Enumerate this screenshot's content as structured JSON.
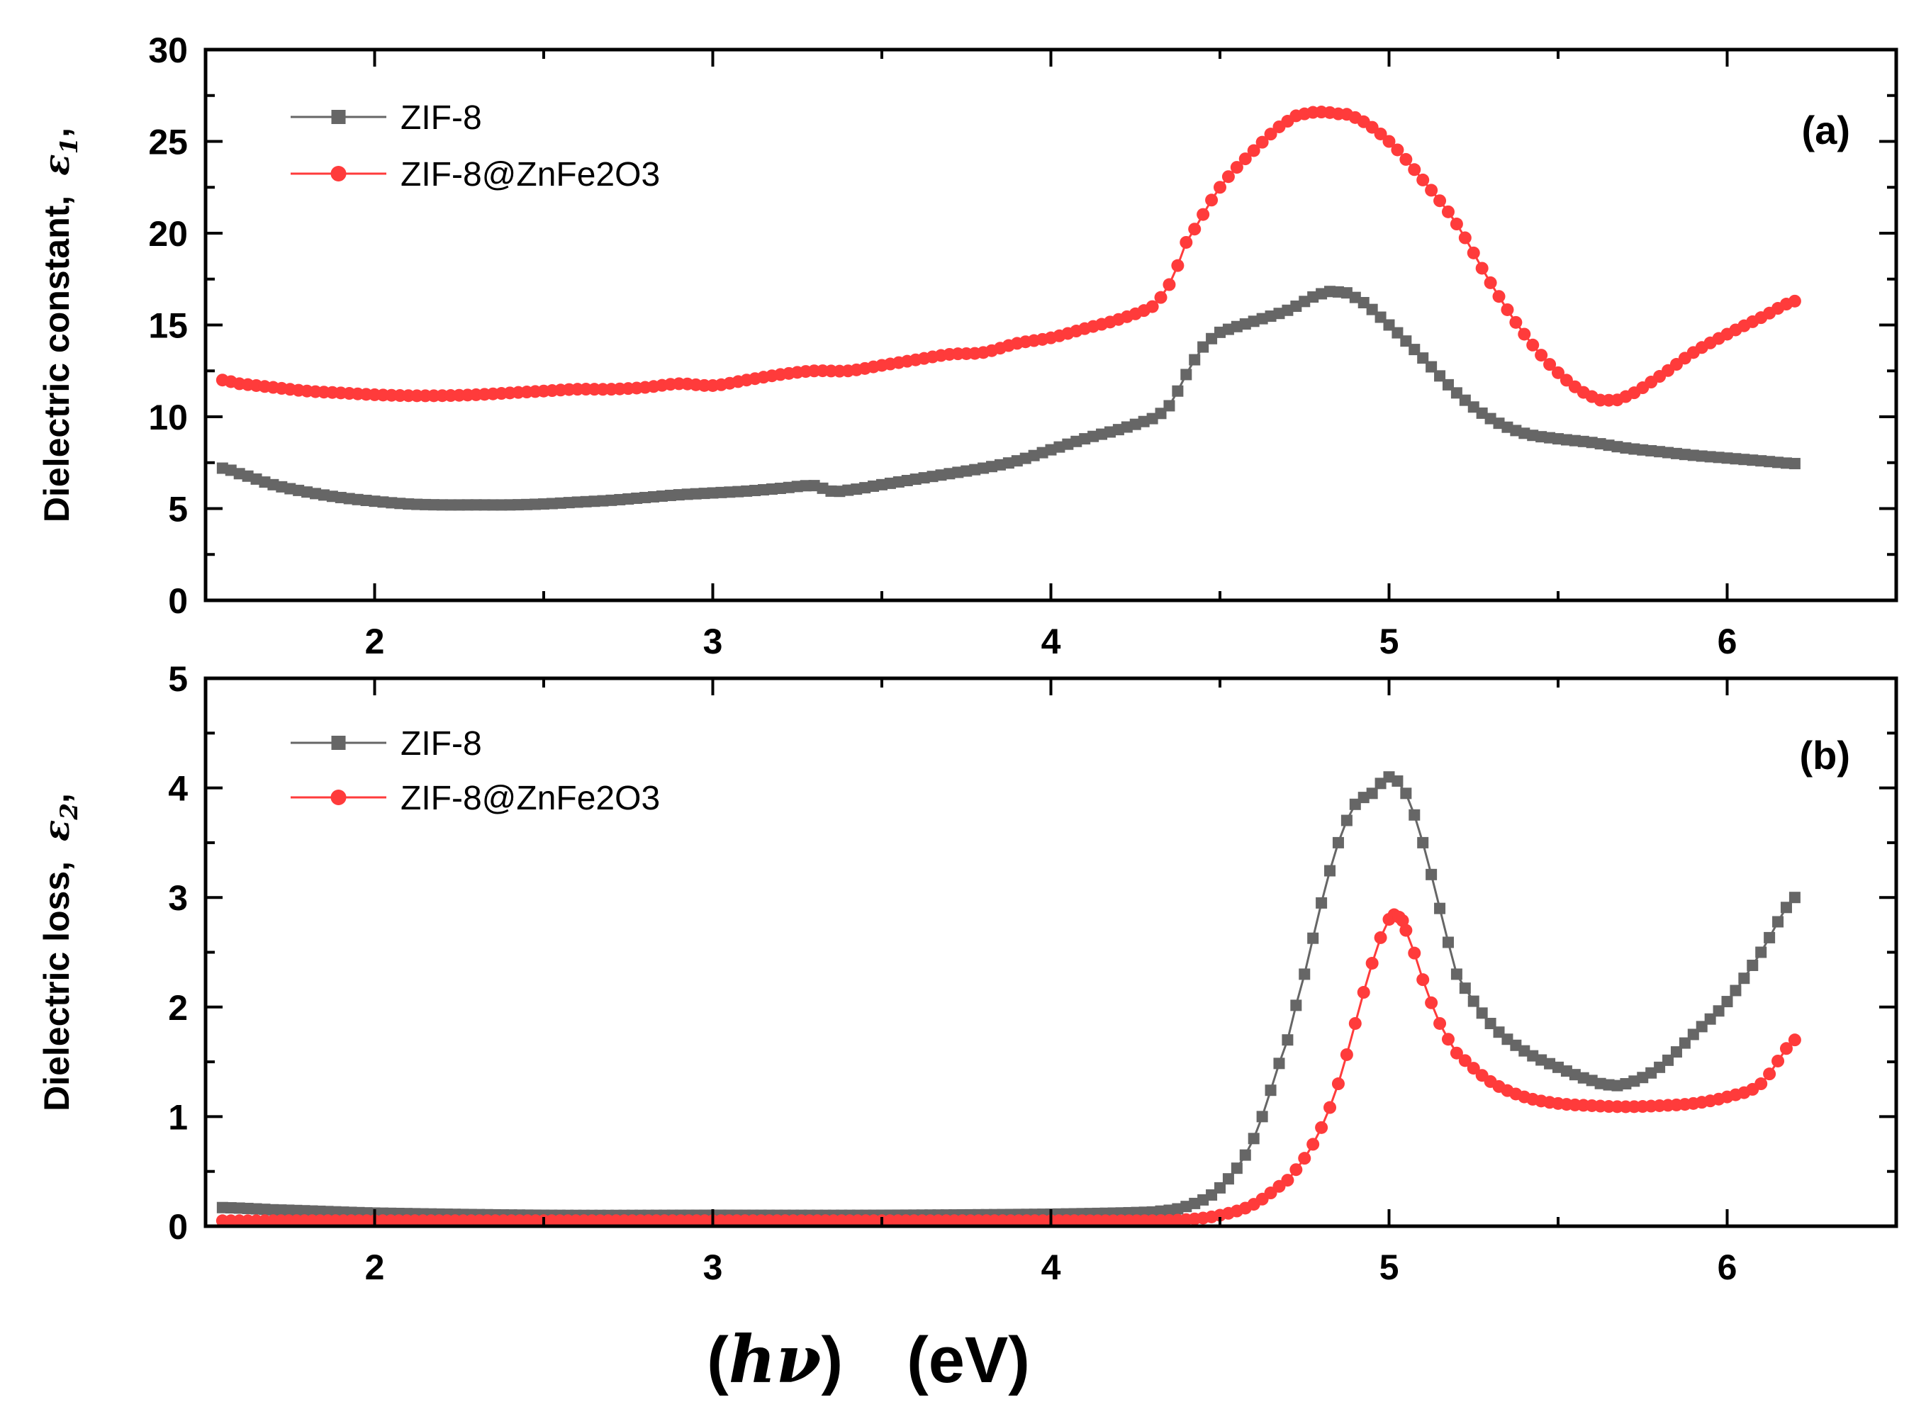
{
  "chart_data": [
    {
      "panel": "a",
      "type": "line",
      "panel_label": "(a)",
      "ylabel": "Dielectric constant,",
      "ylabel_symbol": "ε",
      "ylabel_sub": "1",
      "ylabel_suffix": ",",
      "xlim": [
        1.5,
        6.5
      ],
      "ylim": [
        0,
        30
      ],
      "xticks": [
        2,
        3,
        4,
        5,
        6
      ],
      "xtick_labels": [
        "2",
        "3",
        "4",
        "5",
        "6"
      ],
      "yticks": [
        0,
        5,
        10,
        15,
        20,
        25,
        30
      ],
      "ytick_labels": [
        "0",
        "5",
        "10",
        "15",
        "20",
        "25",
        "30"
      ],
      "legend_position": "top-left",
      "series": [
        {
          "name": "ZIF-8",
          "color": "#666666",
          "marker": "square",
          "x": [
            1.55,
            1.6,
            1.7,
            1.8,
            1.9,
            2.0,
            2.1,
            2.2,
            2.3,
            2.4,
            2.5,
            2.6,
            2.7,
            2.8,
            2.9,
            3.0,
            3.1,
            3.2,
            3.3,
            3.35,
            3.4,
            3.5,
            3.6,
            3.7,
            3.8,
            3.9,
            4.0,
            4.1,
            4.2,
            4.3,
            4.35,
            4.4,
            4.45,
            4.5,
            4.6,
            4.7,
            4.8,
            4.85,
            4.9,
            5.0,
            5.1,
            5.2,
            5.3,
            5.4,
            5.5,
            5.6,
            5.7,
            5.8,
            5.9,
            6.0,
            6.1,
            6.2
          ],
          "y": [
            7.2,
            6.9,
            6.3,
            5.9,
            5.6,
            5.4,
            5.25,
            5.2,
            5.2,
            5.2,
            5.25,
            5.35,
            5.45,
            5.6,
            5.75,
            5.85,
            5.95,
            6.1,
            6.25,
            5.95,
            6.0,
            6.3,
            6.6,
            6.9,
            7.2,
            7.6,
            8.2,
            8.8,
            9.3,
            9.9,
            10.6,
            12.3,
            13.8,
            14.6,
            15.2,
            15.8,
            16.7,
            16.8,
            16.5,
            15.0,
            13.2,
            11.3,
            9.9,
            9.1,
            8.8,
            8.6,
            8.3,
            8.1,
            7.9,
            7.75,
            7.6,
            7.45
          ]
        },
        {
          "name": "ZIF-8@ZnFe2O3",
          "color": "#ff3b3b",
          "marker": "circle",
          "x": [
            1.55,
            1.6,
            1.7,
            1.8,
            1.9,
            2.0,
            2.1,
            2.2,
            2.3,
            2.4,
            2.5,
            2.6,
            2.7,
            2.8,
            2.9,
            3.0,
            3.1,
            3.2,
            3.3,
            3.4,
            3.5,
            3.6,
            3.7,
            3.8,
            3.9,
            4.0,
            4.1,
            4.2,
            4.3,
            4.35,
            4.4,
            4.5,
            4.6,
            4.7,
            4.75,
            4.8,
            4.85,
            4.9,
            5.0,
            5.1,
            5.2,
            5.3,
            5.4,
            5.5,
            5.6,
            5.65,
            5.7,
            5.8,
            5.9,
            6.0,
            6.1,
            6.2
          ],
          "y": [
            12.0,
            11.8,
            11.6,
            11.4,
            11.3,
            11.2,
            11.15,
            11.15,
            11.2,
            11.3,
            11.4,
            11.5,
            11.5,
            11.6,
            11.8,
            11.7,
            12.0,
            12.3,
            12.5,
            12.5,
            12.8,
            13.1,
            13.4,
            13.5,
            14.0,
            14.3,
            14.8,
            15.3,
            16.0,
            17.2,
            19.5,
            22.5,
            24.5,
            26.1,
            26.5,
            26.6,
            26.5,
            26.3,
            25.0,
            22.9,
            20.5,
            17.3,
            14.5,
            12.4,
            11.1,
            10.9,
            11.1,
            12.2,
            13.5,
            14.5,
            15.4,
            16.3
          ]
        }
      ]
    },
    {
      "panel": "b",
      "type": "line",
      "panel_label": "(b)",
      "ylabel": "Dielectric loss,",
      "ylabel_symbol": "ε",
      "ylabel_sub": "2",
      "ylabel_suffix": ",",
      "xlabel": "(hν)    (eV)",
      "xlabel_paren_open": "(",
      "xlabel_h": "h",
      "xlabel_nu": "ν",
      "xlabel_paren_close": ")",
      "xlabel_unit": "(eV)",
      "xlim": [
        1.5,
        6.5
      ],
      "ylim": [
        0,
        5
      ],
      "xticks": [
        2,
        3,
        4,
        5,
        6
      ],
      "xtick_labels": [
        "2",
        "3",
        "4",
        "5",
        "6"
      ],
      "yticks": [
        0,
        1,
        2,
        3,
        4,
        5
      ],
      "ytick_labels": [
        "0",
        "1",
        "2",
        "3",
        "4",
        "5"
      ],
      "legend_position": "top-left",
      "series": [
        {
          "name": "ZIF-8",
          "color": "#666666",
          "marker": "square",
          "x": [
            1.55,
            1.7,
            2.0,
            2.5,
            3.0,
            3.5,
            4.0,
            4.3,
            4.4,
            4.5,
            4.6,
            4.7,
            4.75,
            4.8,
            4.85,
            4.9,
            4.95,
            5.0,
            5.05,
            5.1,
            5.15,
            5.2,
            5.3,
            5.4,
            5.5,
            5.6,
            5.65,
            5.7,
            5.8,
            5.9,
            6.0,
            6.1,
            6.2
          ],
          "y": [
            0.17,
            0.15,
            0.12,
            0.1,
            0.1,
            0.1,
            0.11,
            0.13,
            0.18,
            0.35,
            0.8,
            1.7,
            2.3,
            2.95,
            3.5,
            3.85,
            3.95,
            4.1,
            3.95,
            3.5,
            2.9,
            2.3,
            1.85,
            1.6,
            1.45,
            1.33,
            1.29,
            1.3,
            1.45,
            1.75,
            2.05,
            2.5,
            3.0
          ]
        },
        {
          "name": "ZIF-8@ZnFe2O3",
          "color": "#ff3b3b",
          "marker": "circle",
          "x": [
            1.55,
            1.7,
            2.0,
            2.5,
            3.0,
            3.5,
            4.0,
            4.3,
            4.4,
            4.5,
            4.6,
            4.7,
            4.75,
            4.8,
            4.85,
            4.9,
            4.95,
            5.0,
            5.03,
            5.05,
            5.1,
            5.15,
            5.2,
            5.3,
            5.4,
            5.5,
            5.6,
            5.7,
            5.8,
            5.9,
            6.0,
            6.1,
            6.2
          ],
          "y": [
            0.05,
            0.05,
            0.05,
            0.05,
            0.05,
            0.05,
            0.05,
            0.05,
            0.06,
            0.1,
            0.2,
            0.42,
            0.62,
            0.9,
            1.3,
            1.85,
            2.4,
            2.8,
            2.82,
            2.7,
            2.25,
            1.85,
            1.58,
            1.32,
            1.18,
            1.12,
            1.1,
            1.09,
            1.1,
            1.12,
            1.18,
            1.3,
            1.7
          ]
        }
      ]
    }
  ]
}
